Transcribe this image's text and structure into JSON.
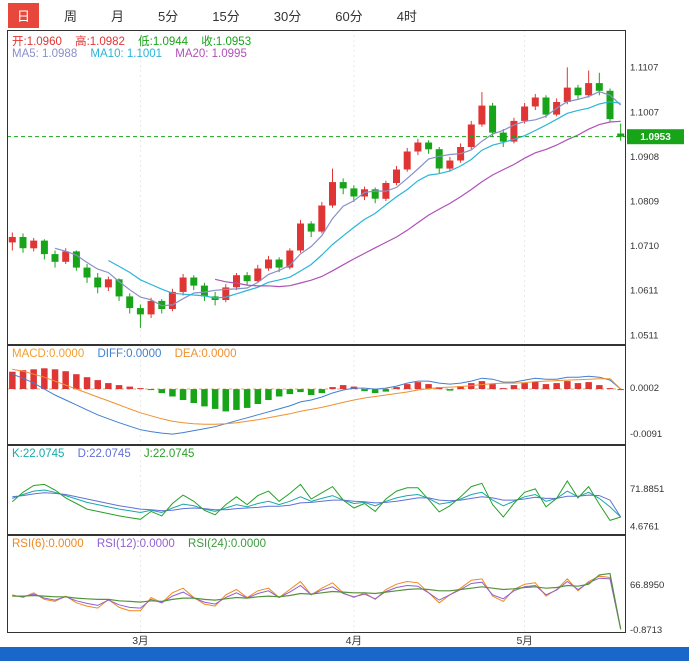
{
  "toolbar": {
    "tabs": [
      {
        "label": "日",
        "selected": true
      },
      {
        "label": "周",
        "selected": false
      },
      {
        "label": "月",
        "selected": false
      },
      {
        "label": "5分",
        "selected": false
      },
      {
        "label": "15分",
        "selected": false
      },
      {
        "label": "30分",
        "selected": false
      },
      {
        "label": "60分",
        "selected": false
      },
      {
        "label": "4时",
        "selected": false
      }
    ]
  },
  "legends": {
    "main": {
      "open": "开:1.0960",
      "high": "高:1.0982",
      "low": "低:1.0944",
      "close": "收:1.0953"
    },
    "ma": {
      "ma5": "MA5: 1.0988",
      "ma10": "MA10: 1.1001",
      "ma20": "MA20: 1.0995"
    },
    "macd": {
      "macd": "MACD:0.0000",
      "diff": "DIFF:0.0000",
      "dea": "DEA:0.0000"
    },
    "kdj": {
      "k": "K:22.0745",
      "d": "D:22.0745",
      "j": "J:22.0745"
    },
    "rsi": {
      "r6": "RSI(6):0.0000",
      "r12": "RSI(12):0.0000",
      "r24": "RSI(24):0.0000"
    }
  },
  "colors": {
    "up": "#e03535",
    "down": "#18a418",
    "tab_active_bg": "#e8483c",
    "scrollbar_blue": "#1a67cc",
    "ma5": "#8890c8",
    "ma10": "#2ab5d8",
    "ma20": "#b050b8",
    "diff": "#4080d0",
    "dea": "#f09030",
    "k": "#18a8a8",
    "d": "#6070d8",
    "j": "#28a028",
    "rsi6": "#f08820",
    "rsi12": "#9060d0",
    "rsi24": "#55933a",
    "price_line": "#18a418",
    "zero_line": "#e0b050",
    "border": "#333333"
  },
  "chart_data": [
    {
      "type": "candlestick",
      "title": "Daily K-line with MA5/MA10/MA20",
      "ylim": [
        1.049,
        1.119
      ],
      "y_ticks": [
        1.1107,
        1.1007,
        1.0908,
        1.0809,
        1.071,
        1.0611,
        1.0511
      ],
      "current_price": 1.0953,
      "last_values": {
        "open": 1.096,
        "high": 1.0982,
        "low": 1.0944,
        "close": 1.0953,
        "ma5": 1.0988,
        "ma10": 1.1001,
        "ma20": 1.0995
      },
      "ma_periods": [
        5,
        10,
        20
      ],
      "months": [
        {
          "label": "3月",
          "index": 12
        },
        {
          "label": "4月",
          "index": 32
        },
        {
          "label": "5月",
          "index": 48
        }
      ],
      "candles": [
        [
          1.0718,
          1.074,
          1.07,
          1.073
        ],
        [
          1.073,
          1.0738,
          1.0695,
          1.0705
        ],
        [
          1.0705,
          1.0728,
          1.0698,
          1.0722
        ],
        [
          1.0722,
          1.0725,
          1.068,
          1.0692
        ],
        [
          1.0692,
          1.07,
          1.0662,
          1.0675
        ],
        [
          1.0675,
          1.0705,
          1.067,
          1.0698
        ],
        [
          1.0698,
          1.07,
          1.0655,
          1.0662
        ],
        [
          1.0662,
          1.067,
          1.0628,
          1.064
        ],
        [
          1.064,
          1.065,
          1.0605,
          1.0618
        ],
        [
          1.0618,
          1.0642,
          1.061,
          1.0636
        ],
        [
          1.0636,
          1.0638,
          1.0588,
          1.0598
        ],
        [
          1.0598,
          1.0605,
          1.056,
          1.0572
        ],
        [
          1.0572,
          1.058,
          1.0528,
          1.0558
        ],
        [
          1.0558,
          1.0595,
          1.055,
          1.0588
        ],
        [
          1.0588,
          1.0592,
          1.056,
          1.057
        ],
        [
          1.057,
          1.0615,
          1.0565,
          1.0608
        ],
        [
          1.0608,
          1.0648,
          1.06,
          1.064
        ],
        [
          1.064,
          1.0645,
          1.0612,
          1.0622
        ],
        [
          1.0622,
          1.0628,
          1.0588,
          1.0598
        ],
        [
          1.0598,
          1.0608,
          1.0578,
          1.059
        ],
        [
          1.059,
          1.0625,
          1.0585,
          1.0618
        ],
        [
          1.0618,
          1.065,
          1.0612,
          1.0645
        ],
        [
          1.0645,
          1.0652,
          1.0622,
          1.0632
        ],
        [
          1.0632,
          1.0668,
          1.0628,
          1.066
        ],
        [
          1.066,
          1.0688,
          1.0655,
          1.068
        ],
        [
          1.068,
          1.0685,
          1.0652,
          1.0662
        ],
        [
          1.0662,
          1.0705,
          1.0658,
          1.07
        ],
        [
          1.07,
          1.0768,
          1.0695,
          1.076
        ],
        [
          1.076,
          1.0765,
          1.073,
          1.0742
        ],
        [
          1.0742,
          1.0808,
          1.0738,
          1.08
        ],
        [
          1.08,
          1.0882,
          1.0795,
          1.0852
        ],
        [
          1.0852,
          1.086,
          1.0825,
          1.0838
        ],
        [
          1.0838,
          1.0845,
          1.0808,
          1.082
        ],
        [
          1.082,
          1.0842,
          1.0812,
          1.0836
        ],
        [
          1.0836,
          1.084,
          1.0805,
          1.0815
        ],
        [
          1.0815,
          1.0855,
          1.081,
          1.085
        ],
        [
          1.085,
          1.0888,
          1.0845,
          1.088
        ],
        [
          1.088,
          1.0928,
          1.0875,
          1.092
        ],
        [
          1.092,
          1.0948,
          1.0912,
          1.094
        ],
        [
          1.094,
          1.0945,
          1.0915,
          1.0925
        ],
        [
          1.0925,
          1.093,
          1.0872,
          1.0882
        ],
        [
          1.0882,
          1.0908,
          1.0875,
          1.09
        ],
        [
          1.09,
          1.0938,
          1.0895,
          1.093
        ],
        [
          1.093,
          1.0988,
          1.0925,
          1.098
        ],
        [
          1.098,
          1.1052,
          1.0975,
          1.1022
        ],
        [
          1.1022,
          1.1028,
          1.0952,
          1.0962
        ],
        [
          1.0962,
          1.097,
          1.093,
          1.0942
        ],
        [
          1.0942,
          1.0995,
          1.0938,
          1.0988
        ],
        [
          1.0988,
          1.1028,
          1.0982,
          1.102
        ],
        [
          1.102,
          1.1048,
          1.1012,
          1.104
        ],
        [
          1.104,
          1.1045,
          1.0995,
          1.1002
        ],
        [
          1.1002,
          1.1038,
          1.0998,
          1.103
        ],
        [
          1.103,
          1.1107,
          1.1025,
          1.1062
        ],
        [
          1.1062,
          1.1068,
          1.1035,
          1.1045
        ],
        [
          1.1045,
          1.11,
          1.104,
          1.1072
        ],
        [
          1.1072,
          1.1095,
          1.1045,
          1.1055
        ],
        [
          1.1055,
          1.106,
          1.0985,
          1.0992
        ],
        [
          1.096,
          1.0982,
          1.0944,
          1.0953
        ]
      ]
    },
    {
      "type": "bar",
      "name": "MACD",
      "ylim": [
        -0.0113,
        0.0089
      ],
      "y_ticks": [
        0.0002,
        -0.0091
      ],
      "last_values": {
        "macd": 0.0,
        "diff": 0.0,
        "dea": 0.0
      },
      "histogram": [
        0.0035,
        0.0038,
        0.004,
        0.0042,
        0.004,
        0.0036,
        0.003,
        0.0024,
        0.0018,
        0.0012,
        0.0008,
        0.0005,
        0.0002,
        -0.0002,
        -0.0008,
        -0.0015,
        -0.0022,
        -0.0028,
        -0.0035,
        -0.004,
        -0.0045,
        -0.0042,
        -0.0038,
        -0.003,
        -0.0022,
        -0.0015,
        -0.001,
        -0.0006,
        -0.0012,
        -0.0008,
        0.0004,
        0.0008,
        0.0005,
        -0.0004,
        -0.0008,
        -0.0005,
        0.0004,
        0.001,
        0.0014,
        0.001,
        0.0004,
        -0.0003,
        0.0006,
        0.0012,
        0.0016,
        0.001,
        0.0002,
        0.0008,
        0.0012,
        0.0015,
        0.001,
        0.0012,
        0.0016,
        0.0012,
        0.0014,
        0.0008,
        0.0002,
        0.0
      ],
      "diff": [
        0.003,
        0.0022,
        0.0012,
        0.0,
        -0.0012,
        -0.0022,
        -0.0032,
        -0.0042,
        -0.0052,
        -0.006,
        -0.0068,
        -0.0075,
        -0.0082,
        -0.0086,
        -0.0089,
        -0.0091,
        -0.0088,
        -0.0084,
        -0.008,
        -0.0076,
        -0.007,
        -0.0064,
        -0.0058,
        -0.0052,
        -0.0046,
        -0.004,
        -0.0034,
        -0.0026,
        -0.0022,
        -0.0016,
        -0.0008,
        -0.0002,
        0.0002,
        0.0002,
        0.0,
        0.0002,
        0.0006,
        0.0012,
        0.0016,
        0.0016,
        0.0012,
        0.001,
        0.0012,
        0.0016,
        0.0022,
        0.002,
        0.0014,
        0.0014,
        0.0018,
        0.0022,
        0.002,
        0.002,
        0.0024,
        0.0024,
        0.0026,
        0.0024,
        0.0018,
        0.0
      ],
      "dea": [
        0.004,
        0.0036,
        0.003,
        0.0024,
        0.0016,
        0.0008,
        0.0,
        -0.0008,
        -0.0016,
        -0.0024,
        -0.0032,
        -0.004,
        -0.0048,
        -0.0054,
        -0.006,
        -0.0065,
        -0.0068,
        -0.007,
        -0.0071,
        -0.0071,
        -0.007,
        -0.0068,
        -0.0065,
        -0.0062,
        -0.0058,
        -0.0054,
        -0.005,
        -0.0045,
        -0.0041,
        -0.0037,
        -0.0032,
        -0.0027,
        -0.0022,
        -0.0018,
        -0.0015,
        -0.0012,
        -0.0009,
        -0.0006,
        -0.0002,
        0.0001,
        0.0003,
        0.0004,
        0.0005,
        0.0007,
        0.0009,
        0.0011,
        0.0012,
        0.0012,
        0.0013,
        0.0015,
        0.0016,
        0.0017,
        0.0018,
        0.0019,
        0.002,
        0.0021,
        0.0021,
        0.0
      ]
    },
    {
      "type": "line",
      "name": "KDJ",
      "ylim": [
        -10,
        150
      ],
      "y_ticks": [
        71.8851,
        4.6761
      ],
      "last_values": {
        "k": 22.0745,
        "d": 22.0745,
        "j": 22.0745
      },
      "k": [
        55,
        62,
        68,
        70,
        66,
        60,
        54,
        48,
        44,
        40,
        36,
        33,
        30,
        34,
        30,
        38,
        45,
        42,
        36,
        32,
        38,
        44,
        40,
        46,
        50,
        44,
        50,
        58,
        50,
        55,
        60,
        52,
        46,
        48,
        42,
        50,
        56,
        60,
        62,
        55,
        45,
        48,
        54,
        62,
        66,
        52,
        42,
        50,
        58,
        62,
        50,
        55,
        68,
        58,
        66,
        55,
        40,
        22.0745
      ],
      "d": [
        58,
        60,
        63,
        65,
        64,
        62,
        58,
        54,
        50,
        46,
        42,
        39,
        36,
        35,
        33,
        34,
        37,
        38,
        37,
        35,
        35,
        37,
        38,
        39,
        41,
        41,
        43,
        47,
        48,
        50,
        52,
        52,
        50,
        49,
        47,
        48,
        50,
        53,
        56,
        56,
        52,
        51,
        52,
        55,
        58,
        56,
        52,
        52,
        54,
        57,
        55,
        55,
        59,
        59,
        61,
        60,
        52,
        22.0745
      ],
      "j": [
        49,
        66,
        78,
        80,
        70,
        56,
        46,
        36,
        32,
        28,
        24,
        21,
        18,
        32,
        24,
        46,
        61,
        50,
        34,
        26,
        44,
        58,
        44,
        60,
        68,
        50,
        64,
        80,
        54,
        65,
        76,
        52,
        38,
        46,
        32,
        54,
        68,
        74,
        74,
        53,
        31,
        42,
        58,
        76,
        82,
        44,
        22,
        46,
        66,
        72,
        40,
        55,
        86,
        56,
        76,
        45,
        16,
        22.0745
      ]
    },
    {
      "type": "line",
      "name": "RSI",
      "ylim": [
        -5.5,
        142
      ],
      "y_ticks": [
        66.895,
        -0.8713
      ],
      "last_values": {
        "rsi6": 0.0,
        "rsi12": 0.0,
        "rsi24": 0.0
      },
      "rsi6": [
        52,
        48,
        55,
        45,
        42,
        50,
        40,
        35,
        32,
        45,
        33,
        28,
        28,
        48,
        40,
        55,
        62,
        48,
        38,
        35,
        52,
        60,
        48,
        58,
        62,
        48,
        60,
        72,
        52,
        62,
        70,
        55,
        48,
        55,
        45,
        60,
        68,
        72,
        70,
        55,
        40,
        52,
        62,
        74,
        76,
        50,
        42,
        60,
        68,
        70,
        50,
        60,
        76,
        58,
        72,
        80,
        78,
        0
      ],
      "rsi12": [
        51,
        49,
        53,
        47,
        44,
        49,
        43,
        39,
        36,
        44,
        37,
        33,
        32,
        45,
        40,
        50,
        56,
        47,
        41,
        38,
        48,
        55,
        47,
        54,
        58,
        48,
        56,
        66,
        52,
        59,
        64,
        54,
        49,
        53,
        46,
        57,
        63,
        66,
        65,
        55,
        44,
        52,
        60,
        69,
        71,
        52,
        46,
        58,
        64,
        66,
        52,
        59,
        72,
        60,
        70,
        77,
        76,
        0
      ],
      "rsi24": [
        50,
        50,
        51,
        50,
        49,
        49,
        47,
        46,
        45,
        45,
        43,
        42,
        41,
        43,
        42,
        45,
        47,
        47,
        45,
        44,
        46,
        48,
        47,
        49,
        50,
        49,
        51,
        54,
        53,
        55,
        57,
        56,
        55,
        55,
        54,
        56,
        58,
        60,
        61,
        60,
        58,
        58,
        60,
        62,
        64,
        62,
        60,
        61,
        63,
        64,
        62,
        63,
        66,
        65,
        68,
        82,
        84,
        0
      ]
    }
  ]
}
